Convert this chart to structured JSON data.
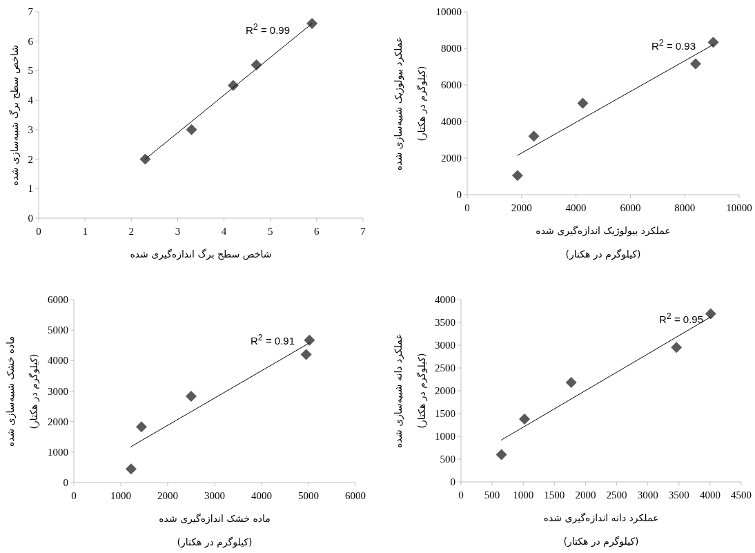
{
  "chart_data": [
    {
      "type": "scatter",
      "xlabel": "شاخص سطح برگ اندازه‌گیری شده",
      "ylabel": "شاخص سطح برگ شبیه‌سازی شده",
      "xlim": [
        0,
        7
      ],
      "ylim": [
        0,
        7
      ],
      "xticks": [
        0,
        1,
        2,
        3,
        4,
        5,
        6,
        7
      ],
      "yticks": [
        0,
        1,
        2,
        3,
        4,
        5,
        6,
        7
      ],
      "series": [
        {
          "x": [
            2.3,
            3.3,
            4.2,
            4.7,
            5.9
          ],
          "values": [
            2,
            3,
            4.5,
            5.2,
            6.6
          ],
          "color": "#595959",
          "marker": "diamond"
        },
        {
          "type": "line",
          "x": [
            2.3,
            5.9
          ],
          "values": [
            2.0,
            6.6
          ],
          "color": "#000000",
          "marker": "none"
        }
      ],
      "annotations": [
        "R$^{2}$ = 0.99"
      ]
    },
    {
      "type": "scatter",
      "xlabel": "عملکرد بیولوژیک اندازه‌گیری شده\n(کیلوگرم در هکتار)",
      "ylabel": "عملکرد بیولوژیک شبیه‌سازی شده\n(کیلوگرم در هکتار)",
      "xlim": [
        0,
        10000
      ],
      "ylim": [
        0,
        10000
      ],
      "xticks": [
        0,
        2000,
        4000,
        6000,
        8000,
        10000
      ],
      "yticks": [
        0,
        2000,
        4000,
        6000,
        8000,
        10000
      ],
      "series": [
        {
          "x": [
            1850,
            2450,
            4250,
            8400,
            9050
          ],
          "values": [
            1050,
            3200,
            5000,
            7150,
            8330
          ],
          "color": "#595959",
          "marker": "diamond"
        },
        {
          "type": "line",
          "x": [
            1850,
            9050
          ],
          "values": [
            2150,
            8200
          ],
          "color": "#000000",
          "marker": "none"
        }
      ],
      "annotations": [
        "R$^{2}$ = 0.93"
      ]
    },
    {
      "type": "scatter",
      "xlabel": "ماده خشک اندازه‌گیری شده\n(کیلوگرم در هکتار)",
      "ylabel": "ماده خشک شبیه‌سازی شده\n(کیلوگرم در هکتار)",
      "xlim": [
        0,
        6000
      ],
      "ylim": [
        0,
        6000
      ],
      "xticks": [
        0,
        1000,
        2000,
        3000,
        4000,
        5000,
        6000
      ],
      "yticks": [
        0,
        1000,
        2000,
        3000,
        4000,
        5000,
        6000
      ],
      "series": [
        {
          "x": [
            1220,
            1440,
            2500,
            4950,
            5020
          ],
          "values": [
            450,
            1830,
            2830,
            4200,
            4670
          ],
          "color": "#595959",
          "marker": "diamond"
        },
        {
          "type": "line",
          "x": [
            1220,
            5020
          ],
          "values": [
            1180,
            4580
          ],
          "color": "#000000",
          "marker": "none"
        }
      ],
      "annotations": [
        "R$^{2}$ = 0.91"
      ]
    },
    {
      "type": "scatter",
      "xlabel": "عملکرد دانه اندازه‌گیری شده\n(کیلوگرم در هکتار)",
      "ylabel": "عملکرد دانه شبیه‌سازی شده\n(کیلوگرم در هکتار)",
      "xlim": [
        0,
        4500
      ],
      "ylim": [
        0,
        4000
      ],
      "xticks": [
        0,
        500,
        1000,
        1500,
        2000,
        2500,
        3000,
        3500,
        4000,
        4500
      ],
      "yticks": [
        0,
        500,
        1000,
        1500,
        2000,
        2500,
        3000,
        3500,
        4000
      ],
      "series": [
        {
          "x": [
            650,
            1020,
            1770,
            3460,
            4010
          ],
          "values": [
            600,
            1380,
            2180,
            2950,
            3690
          ],
          "color": "#595959",
          "marker": "diamond"
        },
        {
          "type": "line",
          "x": [
            650,
            4010
          ],
          "values": [
            920,
            3620
          ],
          "color": "#000000",
          "marker": "none"
        }
      ],
      "annotations": [
        "R$^{2}$ = 0.95"
      ]
    }
  ]
}
